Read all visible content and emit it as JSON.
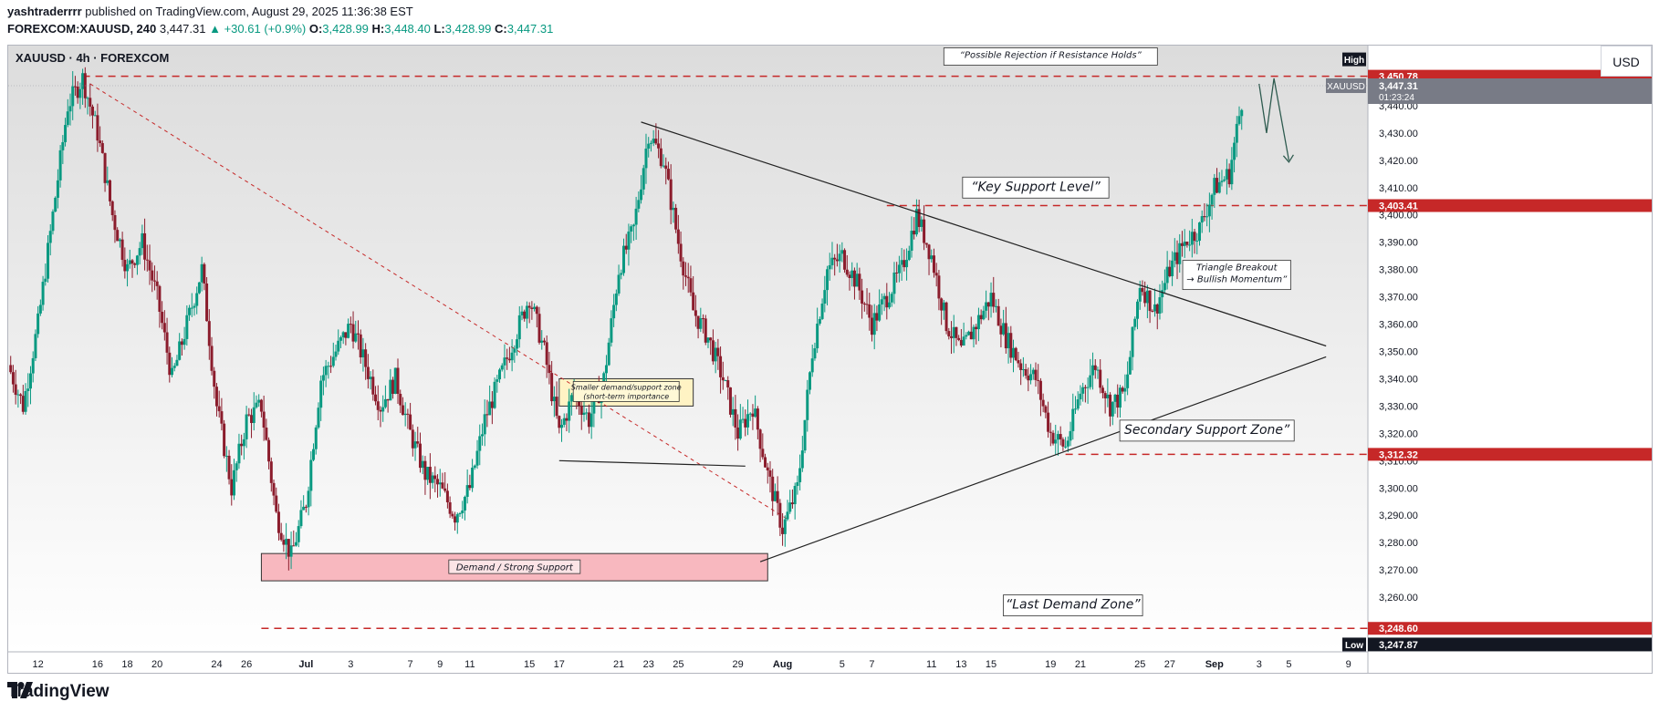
{
  "header": {
    "author": "yashtraderrrr",
    "published_text": " published on TradingView.com, August 29, 2025 11:36:38 EST",
    "symbol": "FOREXCOM:XAUUSD, 240",
    "last": "3,447.31",
    "change": "▲ +30.61 (+0.9%)",
    "o_label": "O:",
    "o": "3,428.99",
    "h_label": "H:",
    "h": "3,448.40",
    "l_label": "L:",
    "l": "3,428.99",
    "c_label": "C:",
    "c": "3,447.31"
  },
  "chart_title": "XAUUSD · 4h · FOREXCOM",
  "currency_button": "USD",
  "footer_logo": "TradingView",
  "colors": {
    "up": "#089981",
    "down": "#8b1c2c",
    "level": "#c62828",
    "price_tag": "#787b86"
  },
  "chart_data": {
    "type": "candlestick",
    "symbol": "XAUUSD",
    "timeframe": "4h",
    "ylim": [
      3240,
      3480
    ],
    "y_ticks": [
      "3,260.00",
      "3,270.00",
      "3,280.00",
      "3,290.00",
      "3,300.00",
      "3,310.00",
      "3,320.00",
      "3,330.00",
      "3,340.00",
      "3,350.00",
      "3,360.00",
      "3,370.00",
      "3,380.00",
      "3,390.00",
      "3,400.00",
      "3,410.00",
      "3,420.00",
      "3,430.00",
      "3,440.00"
    ],
    "x_ticks": [
      {
        "label": "12",
        "pos": 12
      },
      {
        "label": "16",
        "pos": 16
      },
      {
        "label": "18",
        "pos": 18
      },
      {
        "label": "20",
        "pos": 20
      },
      {
        "label": "24",
        "pos": 24
      },
      {
        "label": "26",
        "pos": 26
      },
      {
        "label": "Jul",
        "pos": 30,
        "bold": true
      },
      {
        "label": "3",
        "pos": 33
      },
      {
        "label": "7",
        "pos": 37
      },
      {
        "label": "9",
        "pos": 39
      },
      {
        "label": "11",
        "pos": 41
      },
      {
        "label": "15",
        "pos": 45
      },
      {
        "label": "17",
        "pos": 47
      },
      {
        "label": "21",
        "pos": 51
      },
      {
        "label": "23",
        "pos": 53
      },
      {
        "label": "25",
        "pos": 55
      },
      {
        "label": "29",
        "pos": 59
      },
      {
        "label": "Aug",
        "pos": 62,
        "bold": true
      },
      {
        "label": "5",
        "pos": 66
      },
      {
        "label": "7",
        "pos": 68
      },
      {
        "label": "11",
        "pos": 72
      },
      {
        "label": "13",
        "pos": 74
      },
      {
        "label": "15",
        "pos": 76
      },
      {
        "label": "19",
        "pos": 80
      },
      {
        "label": "21",
        "pos": 82
      },
      {
        "label": "25",
        "pos": 86
      },
      {
        "label": "27",
        "pos": 88
      },
      {
        "label": "Sep",
        "pos": 91,
        "bold": true
      },
      {
        "label": "3",
        "pos": 94
      },
      {
        "label": "5",
        "pos": 96
      },
      {
        "label": "9",
        "pos": 100
      }
    ],
    "day_range": [
      10,
      101
    ],
    "price_path": [
      [
        10,
        3345
      ],
      [
        11,
        3330
      ],
      [
        12,
        3360
      ],
      [
        14,
        3440
      ],
      [
        15,
        3450
      ],
      [
        16,
        3430
      ],
      [
        17,
        3400
      ],
      [
        18,
        3380
      ],
      [
        19,
        3390
      ],
      [
        20,
        3370
      ],
      [
        21,
        3340
      ],
      [
        22,
        3360
      ],
      [
        23,
        3380
      ],
      [
        24,
        3330
      ],
      [
        25,
        3300
      ],
      [
        26,
        3325
      ],
      [
        27,
        3330
      ],
      [
        28,
        3290
      ],
      [
        29,
        3275
      ],
      [
        30,
        3295
      ],
      [
        31,
        3340
      ],
      [
        32,
        3350
      ],
      [
        33,
        3360
      ],
      [
        34,
        3345
      ],
      [
        35,
        3330
      ],
      [
        36,
        3340
      ],
      [
        37,
        3320
      ],
      [
        38,
        3305
      ],
      [
        39,
        3300
      ],
      [
        40,
        3290
      ],
      [
        41,
        3300
      ],
      [
        42,
        3325
      ],
      [
        43,
        3340
      ],
      [
        44,
        3355
      ],
      [
        45,
        3370
      ],
      [
        46,
        3350
      ],
      [
        47,
        3320
      ],
      [
        48,
        3335
      ],
      [
        49,
        3325
      ],
      [
        50,
        3340
      ],
      [
        51,
        3380
      ],
      [
        52,
        3395
      ],
      [
        53,
        3430
      ],
      [
        54,
        3420
      ],
      [
        55,
        3390
      ],
      [
        56,
        3365
      ],
      [
        57,
        3355
      ],
      [
        58,
        3340
      ],
      [
        59,
        3320
      ],
      [
        60,
        3330
      ],
      [
        61,
        3305
      ],
      [
        62,
        3285
      ],
      [
        63,
        3300
      ],
      [
        64,
        3350
      ],
      [
        65,
        3380
      ],
      [
        66,
        3385
      ],
      [
        67,
        3375
      ],
      [
        68,
        3360
      ],
      [
        69,
        3370
      ],
      [
        70,
        3380
      ],
      [
        71,
        3400
      ],
      [
        72,
        3385
      ],
      [
        73,
        3360
      ],
      [
        74,
        3350
      ],
      [
        75,
        3360
      ],
      [
        76,
        3370
      ],
      [
        77,
        3355
      ],
      [
        78,
        3345
      ],
      [
        79,
        3340
      ],
      [
        80,
        3320
      ],
      [
        81,
        3315
      ],
      [
        82,
        3335
      ],
      [
        83,
        3345
      ],
      [
        84,
        3330
      ],
      [
        85,
        3335
      ],
      [
        86,
        3375
      ],
      [
        87,
        3365
      ],
      [
        88,
        3380
      ],
      [
        89,
        3390
      ],
      [
        90,
        3395
      ],
      [
        91,
        3410
      ],
      [
        92,
        3415
      ],
      [
        93,
        3447
      ]
    ],
    "last_price_day": 93,
    "levels": [
      {
        "price": 3450.78,
        "label": "3,450.78",
        "from": 15
      },
      {
        "price": 3403.41,
        "label": "3,403.41",
        "from": 69
      },
      {
        "price": 3312.32,
        "label": "3,312.32",
        "from": 81
      },
      {
        "price": 3248.6,
        "label": "3,248.60",
        "from": 27
      }
    ],
    "low_price": 3247.87,
    "low_label": "3,247.87",
    "low_tag": "Low",
    "high_tag": "High",
    "current_price": 3447.31,
    "current_label": "3,447.31",
    "countdown": "01:23:24",
    "symbol_tag": "XAUUSD",
    "trendlines": [
      {
        "name": "triangle-upper-line",
        "from": [
          52.5,
          3434
        ],
        "to": [
          98.5,
          3352
        ]
      },
      {
        "name": "triangle-lower-line",
        "from": [
          60.5,
          3273
        ],
        "to": [
          98.5,
          3348
        ]
      },
      {
        "name": "small-support-line",
        "from": [
          47,
          3310
        ],
        "to": [
          59.5,
          3308
        ]
      }
    ],
    "dashed_diagonal": {
      "from": [
        15.5,
        3448
      ],
      "to": [
        62.5,
        3288
      ]
    },
    "zones": [
      {
        "name": "demand-strong-support-zone",
        "from": 27,
        "to": 61,
        "top": 3276,
        "bottom": 3266,
        "label": "Demand / Strong Support"
      },
      {
        "name": "smaller-demand-zone",
        "from": 47,
        "to": 56,
        "top": 3340,
        "bottom": 3330,
        "label": "Smaller demand/support zone",
        "label2": "(short-term importance"
      }
    ],
    "annotations": [
      {
        "text": "“Possible Rejection if Resistance Holds”",
        "day": 80,
        "price": 3458
      },
      {
        "text": "“Key Support Level”",
        "day": 79,
        "price": 3410
      },
      {
        "text": "Triangle Breakout",
        "text2": "→ Bullish Momentum”",
        "day": 92.5,
        "price": 3378
      },
      {
        "text": "Secondary Support Zone”",
        "day": 90.5,
        "price": 3321
      },
      {
        "text": "“Last Demand Zone”",
        "day": 81.5,
        "price": 3257
      }
    ],
    "projection": [
      [
        94,
        3448
      ],
      [
        94.5,
        3430
      ],
      [
        95,
        3450
      ],
      [
        96,
        3420
      ]
    ]
  }
}
